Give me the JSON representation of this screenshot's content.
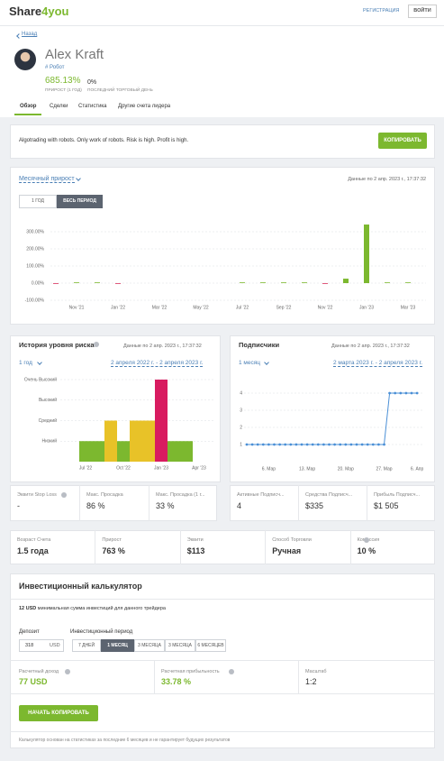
{
  "header": {
    "logo_a": "Share",
    "logo_b": "4you",
    "register": "РЕГИСТРАЦИЯ",
    "login": "ВОЙТИ"
  },
  "back": "Назад",
  "profile": {
    "name": "Alex Kraft",
    "tag": "# Робот",
    "growth": "685.13%",
    "growth_label": "ПРИРОСТ (1 ГОД)",
    "last_day": "0%",
    "last_day_label": "ПОСЛЕДНИЙ ТОРГОВЫЙ ДЕНЬ"
  },
  "tabs": [
    "Обзор",
    "Сделки",
    "Статистика",
    "Другие счета лидера"
  ],
  "description": "Algotrading with robots. Only work of robots. Risk is high. Profit is high.",
  "copy_button": "КОПИРОВАТЬ",
  "growth_section": {
    "title": "Месячный прирост",
    "date": "Данные по 2 апр. 2023 г., 17:37:32",
    "periods": [
      "1 ГОД",
      "ВЕСЬ ПЕРИОД"
    ],
    "chart": {
      "type": "bar",
      "categories": [
        null,
        "Nov '21",
        null,
        "Jan '22",
        null,
        "Mar '22",
        null,
        "May '22",
        null,
        "Jul '22",
        null,
        "Sep '22",
        null,
        "Nov '22",
        null,
        "Jan '23",
        null,
        "Mar '23"
      ],
      "values": [
        -2,
        1,
        1,
        -2,
        null,
        null,
        null,
        null,
        null,
        1,
        2,
        1,
        1,
        -3,
        26,
        342,
        1,
        1
      ],
      "positive_color": "#7cb82f",
      "negative_color": "#d9315c",
      "ylim": [
        -130,
        360
      ],
      "yticks": [
        {
          "value": 300,
          "label": "300.00%"
        },
        {
          "value": 200,
          "label": "200.00%"
        },
        {
          "value": 100,
          "label": "100.00%"
        },
        {
          "value": 0,
          "label": "0.00%"
        },
        {
          "value": -100,
          "label": "-100.00%"
        }
      ],
      "grid": true
    }
  },
  "risk_section": {
    "title": "История уровня риска",
    "date": "Данные по 2 апр. 2023 г., 17:37:32",
    "period": "1 год",
    "range": "2 апреля 2022 г. - 2 апреля 2023 г.",
    "chart": {
      "type": "bar",
      "categories": [
        "Jul '22",
        null,
        null,
        "Oct '22",
        null,
        null,
        "Jan '23",
        null,
        null,
        "Apr '23"
      ],
      "values": [
        1,
        1,
        2,
        1,
        2,
        2,
        4,
        1,
        1,
        null
      ],
      "colors": [
        "#7cb82f",
        "#7cb82f",
        "#e8c228",
        "#7cb82f",
        "#e8c228",
        "#e8c228",
        "#d81b60",
        "#7cb82f",
        "#7cb82f",
        null
      ],
      "ylim": [
        0,
        4
      ],
      "yticks": [
        {
          "value": 4,
          "label": "Очень Высокий"
        },
        {
          "value": 3,
          "label": "Высокий"
        },
        {
          "value": 2,
          "label": "Средний"
        },
        {
          "value": 1,
          "label": "Низкий"
        }
      ],
      "grid": true
    }
  },
  "subscribers_section": {
    "title": "Подписчики",
    "date": "Данные по 2 апр. 2023 г., 17:37:32",
    "period": "1 месяц",
    "range": "2 марта 2023 г. - 2 апреля 2023 г.",
    "chart": {
      "type": "line",
      "categories": [
        null,
        null,
        null,
        null,
        "6. Мар",
        null,
        null,
        null,
        null,
        null,
        null,
        "13. Мар",
        null,
        null,
        null,
        null,
        null,
        null,
        "20. Мар",
        null,
        null,
        null,
        null,
        null,
        null,
        "27. Мар",
        null,
        null,
        null,
        null,
        null,
        "6. Апр"
      ],
      "values": [
        1,
        1,
        1,
        1,
        1,
        1,
        1,
        1,
        1,
        1,
        1,
        1,
        1,
        1,
        1,
        1,
        1,
        1,
        1,
        1,
        1,
        1,
        1,
        1,
        1,
        1,
        4,
        4,
        4,
        4,
        4,
        4
      ],
      "color": "#4a8fd6",
      "ylim": [
        0,
        4
      ],
      "yticks": [
        1,
        2,
        3,
        4
      ],
      "grid": true
    }
  },
  "stats_left": [
    {
      "label": "Эквити Stop Loss",
      "value": "-"
    },
    {
      "label": "Макс. Просадка",
      "value": "86 %"
    },
    {
      "label": "Макс. Просадка (1 г...",
      "value": "33 %"
    }
  ],
  "stats_right": [
    {
      "label": "Активные Подписч...",
      "value": "4"
    },
    {
      "label": "Средства Подписч...",
      "value": "$335"
    },
    {
      "label": "Прибыль Подписч...",
      "value": "$1 505"
    }
  ],
  "stats_row": [
    {
      "label": "Возраст Счета",
      "value": "1.5 года"
    },
    {
      "label": "Прирост",
      "value": "763 %"
    },
    {
      "label": "Эквити",
      "value": "$113"
    },
    {
      "label": "Способ Торговли",
      "value": "Ручная"
    },
    {
      "label": "Комиссия",
      "value": "10 %"
    }
  ],
  "calculator": {
    "title": "Инвестиционный калькулятор",
    "min_amount": "12 USD",
    "min_text": "минимальная сумма инвестиций для данного трейдера",
    "deposit_label": "Депозит",
    "deposit_value": "318",
    "deposit_currency": "USD",
    "period_label": "Инвестиционный период",
    "periods": [
      "7 ДНЕЙ",
      "1 МЕСЯЦ",
      "3 МЕСЯЦА",
      "3 МЕСЯЦА",
      "6 МЕСЯЦЕВ"
    ],
    "income_label": "Расчетный доход",
    "income_value": "77 USD",
    "profit_label": "Расчетная прибыльность",
    "profit_value": "33.78 %",
    "scale_label": "Масштаб",
    "scale_value": "1:2",
    "start_button": "НАЧАТЬ КОПИРОВАТЬ",
    "footnote": "Калькулятор основан на статистиках за последние 6 месяцев и не гарантирует будущих результатов"
  }
}
